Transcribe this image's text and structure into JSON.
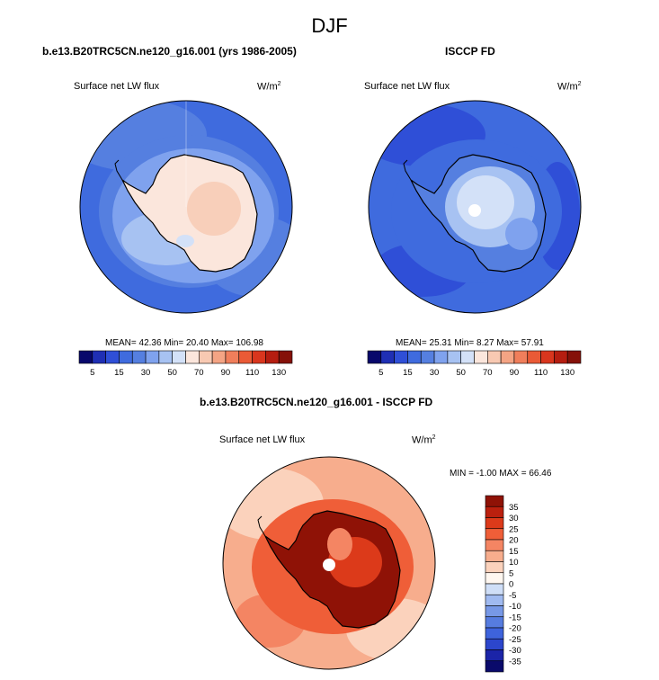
{
  "figure": {
    "title": "DJF"
  },
  "panels": [
    {
      "title": "b.e13.B20TRC5CN.ne120_g16.001 (yrs 1986-2005)",
      "variable": "Surface net LW flux",
      "units": "W/m",
      "units_exp": "2",
      "stats": "MEAN= 42.36  Min= 20.40  Max= 106.98"
    },
    {
      "title": "ISCCP FD",
      "variable": "Surface net LW flux",
      "units": "W/m",
      "units_exp": "2",
      "stats": "MEAN= 25.31  Min=  8.27  Max= 57.91"
    },
    {
      "title": "b.e13.B20TRC5CN.ne120_g16.001 - ISCCP FD",
      "variable": "Surface net LW flux",
      "units": "W/m",
      "units_exp": "2",
      "stats": "MIN =  -1.00 MAX =  66.46"
    }
  ],
  "colors": {
    "abs_scale": [
      "#08086b",
      "#1f2fb4",
      "#2f4fd7",
      "#3f6bde",
      "#557fe0",
      "#7fa2ee",
      "#a7c2f2",
      "#d3e1f8",
      "#fbe6dc",
      "#f8c9b2",
      "#f4a484",
      "#f07e5b",
      "#ea5a36",
      "#d9361e",
      "#b51d10",
      "#851109"
    ],
    "diff_scale": [
      "#0a0a6b",
      "#1b24a8",
      "#2c46cc",
      "#3e63dc",
      "#567cdf",
      "#7798e6",
      "#a0baf0",
      "#cfdef7",
      "#fff7f0",
      "#fbd2bc",
      "#f7ad8d",
      "#f48563",
      "#ef5e38",
      "#dc3a1a",
      "#bb200e",
      "#8f1206"
    ],
    "coastline": "#000000"
  },
  "chart_data": [
    {
      "type": "heatmap",
      "projection": "south-polar-stereographic",
      "title": "b.e13.B20TRC5CN.ne120_g16.001 (yrs 1986-2005)",
      "variable": "Surface net LW flux",
      "units": "W/m2",
      "colorbar": {
        "orientation": "horizontal",
        "levels": [
          5,
          10,
          15,
          20,
          30,
          40,
          50,
          60,
          70,
          80,
          90,
          100,
          110,
          120,
          130
        ],
        "tick_labels": [
          "5",
          "15",
          "30",
          "50",
          "70",
          "90",
          "110",
          "130"
        ]
      },
      "regions": [
        {
          "area": "southern ocean outer",
          "value": 35
        },
        {
          "area": "southern ocean near coast",
          "value": 45
        },
        {
          "area": "antarctic coast belt",
          "value": 55
        },
        {
          "area": "antarctic interior",
          "value": 68
        }
      ],
      "stats": {
        "mean": 42.36,
        "min": 20.4,
        "max": 106.98
      }
    },
    {
      "type": "heatmap",
      "projection": "south-polar-stereographic",
      "title": "ISCCP FD",
      "variable": "Surface net LW flux",
      "units": "W/m2",
      "colorbar": {
        "orientation": "horizontal",
        "levels": [
          5,
          10,
          15,
          20,
          30,
          40,
          50,
          60,
          70,
          80,
          90,
          100,
          110,
          120,
          130
        ],
        "tick_labels": [
          "5",
          "15",
          "30",
          "50",
          "70",
          "90",
          "110",
          "130"
        ]
      },
      "regions": [
        {
          "area": "southern ocean",
          "value": 25
        },
        {
          "area": "antarctic coast belt",
          "value": 20
        },
        {
          "area": "antarctic interior",
          "value": 45
        },
        {
          "area": "south pole",
          "value": null
        }
      ],
      "stats": {
        "mean": 25.31,
        "min": 8.27,
        "max": 57.91
      }
    },
    {
      "type": "heatmap",
      "projection": "south-polar-stereographic",
      "title": "b.e13.B20TRC5CN.ne120_g16.001 - ISCCP FD",
      "variable": "Surface net LW flux",
      "units": "W/m2",
      "colorbar": {
        "orientation": "vertical",
        "levels": [
          35,
          30,
          25,
          20,
          15,
          10,
          5,
          0,
          -5,
          -10,
          -15,
          -20,
          -25,
          -30,
          -35
        ],
        "tick_labels": [
          "35",
          "30",
          "25",
          "20",
          "15",
          "10",
          "5",
          "0",
          "-5",
          "-10",
          "-15",
          "-20",
          "-25",
          "-30",
          "-35"
        ]
      },
      "regions": [
        {
          "area": "southern ocean",
          "value": 8
        },
        {
          "area": "antarctic coast belt",
          "value": 25
        },
        {
          "area": "antarctic interior",
          "value": 36
        },
        {
          "area": "south pole",
          "value": null
        }
      ],
      "stats": {
        "min": -1.0,
        "max": 66.46
      }
    }
  ]
}
